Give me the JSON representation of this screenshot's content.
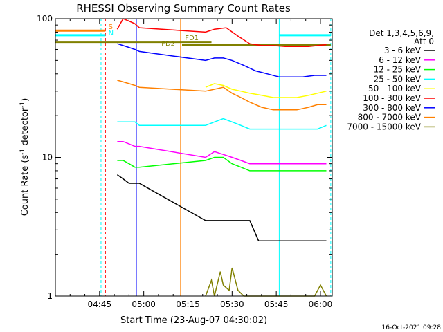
{
  "chart_data": {
    "type": "line",
    "title": "RHESSI Observing Summary Count Rates",
    "xlabel": "Start Time (23-Aug-07 04:30:02)",
    "ylabel_main": "Count Rate (s",
    "ylabel_sup": "-1",
    "ylabel_tail": " detector",
    "ylabel_close": ")",
    "footer": "16-Oct-2021 09:28",
    "yscale": "log",
    "ylim": [
      1,
      100
    ],
    "xlim": [
      30,
      124
    ],
    "y_ticks": [
      {
        "value": 1,
        "label": "1"
      },
      {
        "value": 10,
        "label": "10"
      },
      {
        "value": 100,
        "label": "100"
      }
    ],
    "x_ticks": [
      {
        "value": 45,
        "label": "04:45"
      },
      {
        "value": 60,
        "label": "05:00"
      },
      {
        "value": 75,
        "label": "05:15"
      },
      {
        "value": 90,
        "label": "05:30"
      },
      {
        "value": 105,
        "label": "05:45"
      },
      {
        "value": 120,
        "label": "06:00"
      }
    ],
    "legend": {
      "placement": "right",
      "header": [
        "Det 1,3,4,5,6,9,",
        "Att 0"
      ],
      "entries": [
        {
          "label": "3 - 6 keV",
          "color": "#000000"
        },
        {
          "label": "6 - 12 keV",
          "color": "#ff00ff"
        },
        {
          "label": "12 - 25 keV",
          "color": "#00ff00"
        },
        {
          "label": "25 - 50 keV",
          "color": "#00ffff"
        },
        {
          "label": "50 - 100 keV",
          "color": "#ffff00"
        },
        {
          "label": "100 - 300 keV",
          "color": "#ff0000"
        },
        {
          "label": "300 - 800 keV",
          "color": "#0000ff"
        },
        {
          "label": "800 - 7000 keV",
          "color": "#ff8000"
        },
        {
          "label": "7000 - 15000 keV",
          "color": "#808000"
        }
      ]
    },
    "series": [
      {
        "color": "#ff0000",
        "x": [
          51,
          53,
          55,
          57,
          58.5,
          81,
          84,
          88,
          92,
          96,
          100,
          104,
          108,
          112,
          116,
          119,
          122
        ],
        "y": [
          84,
          100,
          96,
          92,
          86,
          80,
          84,
          86,
          75,
          66,
          64,
          64,
          63,
          63,
          63,
          64,
          65
        ]
      },
      {
        "color": "#0000ff",
        "x": [
          51,
          53,
          55,
          57,
          58.5,
          81,
          84,
          87,
          90,
          94,
          98,
          102,
          106,
          110,
          114,
          118,
          122
        ],
        "y": [
          66,
          64,
          62,
          60,
          58,
          50,
          52,
          52,
          50,
          46,
          42,
          40,
          38,
          38,
          38,
          39,
          39
        ]
      },
      {
        "color": "#ff8000",
        "x": [
          51,
          53,
          55,
          57,
          58.5,
          81,
          84,
          87,
          90,
          93,
          96,
          100,
          104,
          108,
          112,
          116,
          119,
          122
        ],
        "y": [
          36,
          35,
          34,
          33,
          32,
          30,
          31,
          32,
          29,
          27,
          25,
          23,
          22,
          22,
          22,
          23,
          24,
          24
        ]
      },
      {
        "color": "#ffff00",
        "x": [
          81,
          84,
          87,
          90,
          93,
          96,
          100,
          104,
          108,
          112,
          116,
          119,
          122
        ],
        "y": [
          32,
          34,
          33,
          31,
          30,
          29,
          28,
          27,
          27,
          27,
          28,
          29,
          30
        ]
      },
      {
        "color": "#00ffff",
        "x": [
          51,
          54,
          57,
          58.5,
          81,
          84,
          87,
          90,
          93,
          96,
          100,
          104,
          108,
          112,
          116,
          119,
          122
        ],
        "y": [
          18,
          18,
          18,
          17,
          17,
          18,
          19,
          18,
          17,
          16,
          16,
          16,
          16,
          16,
          16,
          16,
          17
        ]
      },
      {
        "color": "#ff00ff",
        "x": [
          51,
          53,
          55,
          57,
          58.5,
          81,
          84,
          87,
          90,
          93,
          96,
          100,
          104,
          108,
          112,
          116,
          119,
          122
        ],
        "y": [
          13,
          13,
          12.5,
          12,
          12,
          10,
          11,
          10.5,
          10,
          9.5,
          9,
          9,
          9,
          9,
          9,
          9,
          9,
          9
        ]
      },
      {
        "color": "#00ff00",
        "x": [
          51,
          53,
          55,
          57,
          58.5,
          81,
          84,
          87,
          90,
          93,
          96,
          100,
          104,
          108,
          112,
          116,
          119,
          122
        ],
        "y": [
          9.5,
          9.5,
          9,
          8.5,
          8.5,
          9.5,
          10,
          10,
          9,
          8.5,
          8,
          8,
          8,
          8,
          8,
          8,
          8,
          8
        ]
      },
      {
        "color": "#000000",
        "x": [
          51,
          53,
          55,
          57,
          58.5,
          81,
          84,
          87,
          90,
          93,
          96,
          99,
          102,
          106,
          110,
          114,
          118,
          122
        ],
        "y": [
          7.5,
          7,
          6.5,
          6.5,
          6.5,
          3.5,
          3.5,
          3.5,
          3.5,
          3.5,
          3.5,
          2.5,
          2.5,
          2.5,
          2.5,
          2.5,
          2.5,
          2.5
        ]
      },
      {
        "color": "#808000",
        "x": [
          81,
          83,
          84,
          86,
          87,
          89,
          90,
          92,
          94,
          96,
          100,
          110,
          118,
          120,
          122
        ],
        "y": [
          1,
          1.3,
          1,
          1.5,
          1.2,
          1.1,
          1.6,
          1.1,
          1,
          1,
          1,
          1,
          1,
          1.2,
          1
        ]
      }
    ],
    "state_bars": [
      {
        "name": "S",
        "color": "#ff8000",
        "segments": [
          {
            "x": [
              30,
              47
            ],
            "y": 82
          }
        ]
      },
      {
        "name": "N",
        "color": "#00ffff",
        "segments": [
          {
            "x": [
              30,
              47
            ],
            "y": 76
          },
          {
            "x": [
              106,
              123.5
            ],
            "y": 76
          }
        ]
      },
      {
        "name": "FD2",
        "color": "#808000",
        "segments": [
          {
            "x": [
              30,
              73
            ],
            "y": 68
          },
          {
            "x": [
              73,
              123.5
            ],
            "y": 65
          }
        ]
      },
      {
        "name": "FD1",
        "color": "#808000",
        "segments": [
          {
            "x": [
              73,
              83
            ],
            "y": 68
          }
        ]
      }
    ],
    "state_labels": [
      {
        "text": "S",
        "color": "#ff8000",
        "x": 48,
        "y": 84
      },
      {
        "text": "N",
        "color": "#00ffff",
        "x": 48,
        "y": 76
      },
      {
        "text": "FD2",
        "color": "#808000",
        "x": 66,
        "y": 64
      },
      {
        "text": "FD1",
        "color": "#808000",
        "x": 74,
        "y": 70
      }
    ],
    "vertical_lines": [
      {
        "x": 30,
        "color": "#00ffff",
        "style": "solid"
      },
      {
        "x": 45.5,
        "color": "#00ffff",
        "style": "dashed"
      },
      {
        "x": 47,
        "color": "#ff0000",
        "style": "dashed"
      },
      {
        "x": 57.5,
        "color": "#0000ff",
        "style": "solid"
      },
      {
        "x": 72.5,
        "color": "#ff8000",
        "style": "solid"
      },
      {
        "x": 106,
        "color": "#00ffff",
        "style": "solid"
      },
      {
        "x": 123.5,
        "color": "#00ffff",
        "style": "dashed"
      }
    ]
  }
}
